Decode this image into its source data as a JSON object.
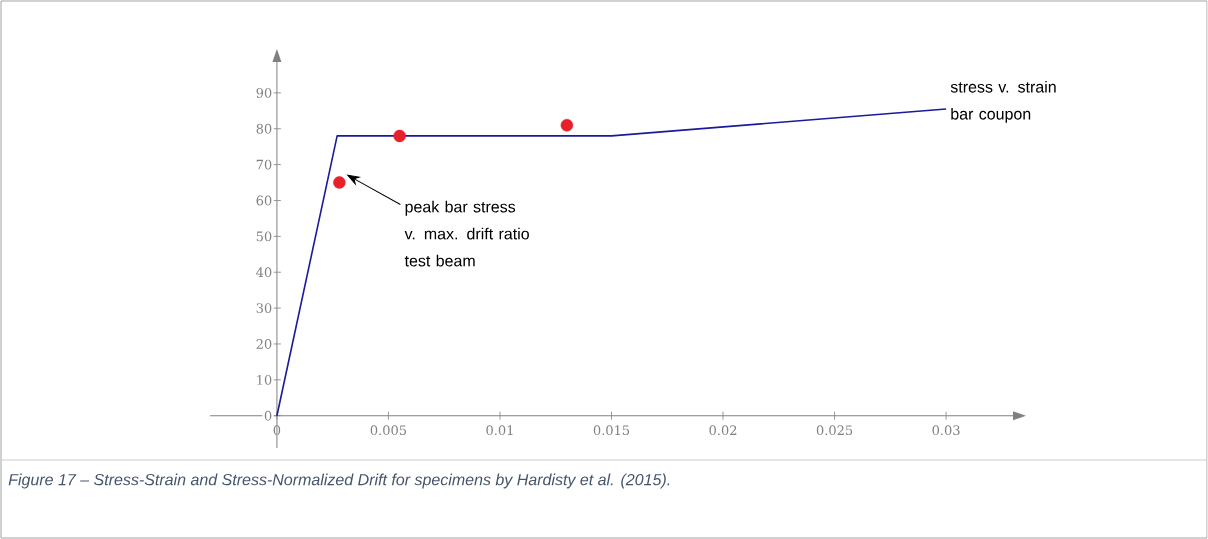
{
  "chart_data": {
    "type": "line",
    "series": [
      {
        "name": "stress v. strain bar coupon",
        "color": "#1a1a9c",
        "marker": "none",
        "x": [
          0,
          0.0027,
          0.015,
          0.03
        ],
        "values": [
          0,
          78,
          78,
          85.5
        ]
      },
      {
        "name": "peak bar stress v. max. drift ratio test beam",
        "type": "scatter",
        "color": "#e8202a",
        "marker": "circle",
        "x": [
          0.0028,
          0.0055,
          0.013
        ],
        "values": [
          65,
          78,
          81
        ]
      }
    ],
    "xlim": [
      -0.003,
      0.033
    ],
    "ylim": [
      -9,
      98.6
    ],
    "xticks": [
      0,
      0.005,
      0.01,
      0.015,
      0.02,
      0.025,
      0.03
    ],
    "yticks": [
      0,
      10,
      20,
      30,
      40,
      50,
      60,
      70,
      80,
      90
    ],
    "annotations": [
      "*Figure 17 – Stress-Strain and Stress-Normalized Drift for specimens by Hardisty et al. (2015).*"
    ]
  }
}
